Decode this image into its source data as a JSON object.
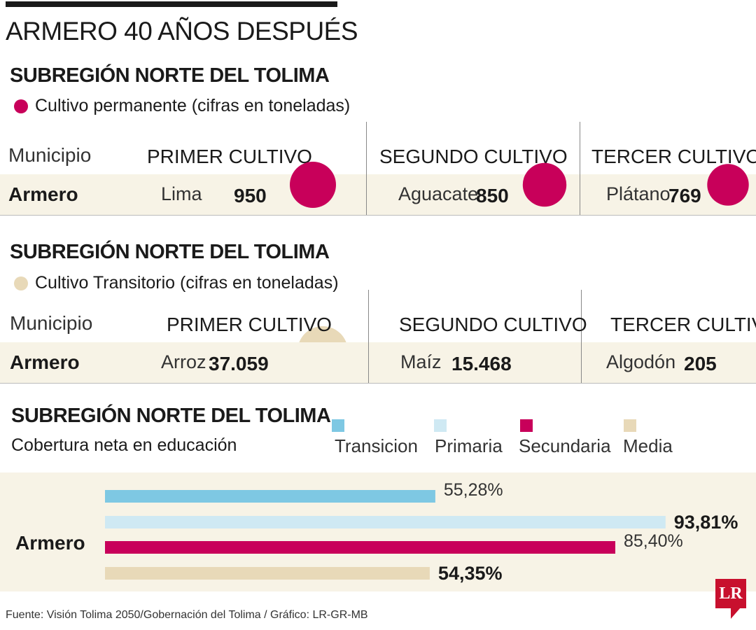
{
  "title": "ARMERO 40 AÑOS DESPUÉS",
  "sections": [
    {
      "subtitle": "SUBREGIÓN NORTE DEL TOLIMA",
      "legend": "Cultivo permanente (cifras en toneladas)",
      "legend_color": "#c8005a",
      "municipio_label": "Municipio",
      "municipio": "Armero",
      "columns": [
        {
          "header": "PRIMER CULTIVO",
          "crop": "Lima",
          "value_label": "950",
          "value": 950
        },
        {
          "header": "SEGUNDO CULTIVO",
          "crop": "Aguacate",
          "value_label": "850",
          "value": 850
        },
        {
          "header": "TERCER CULTIVO",
          "crop": "Plátano",
          "value_label": "769",
          "value": 769
        }
      ]
    },
    {
      "subtitle": "SUBREGIÓN NORTE DEL TOLIMA",
      "legend": "Cultivo Transitorio (cifras en toneladas)",
      "legend_color": "#e8d9b8",
      "municipio_label": "Municipio",
      "municipio": "Armero",
      "columns": [
        {
          "header": "PRIMER CULTIVO",
          "crop": "Arroz",
          "value_label": "37.059",
          "value": 37059
        },
        {
          "header": "SEGUNDO CULTIVO",
          "crop": "Maíz",
          "value_label": "15.468",
          "value": 15468
        },
        {
          "header": "TERCER CULTIVO",
          "crop": "Algodón",
          "value_label": "205",
          "value": 205
        }
      ]
    }
  ],
  "education": {
    "subtitle": "SUBREGIÓN NORTE DEL TOLIMA",
    "caption": "Cobertura neta en educación",
    "municipio": "Armero"
  },
  "chart_data": {
    "type": "bar",
    "orientation": "horizontal",
    "categories": [
      "Armero"
    ],
    "series": [
      {
        "name": "Transicion",
        "values": [
          55.28
        ],
        "label": "55,28%",
        "color": "#7ec8e3",
        "bold": false
      },
      {
        "name": "Primaria",
        "values": [
          93.81
        ],
        "label": "93,81%",
        "color": "#cfe9f3",
        "bold": true
      },
      {
        "name": "Secundaria",
        "values": [
          85.4
        ],
        "label": "85,40%",
        "color": "#c8005a",
        "bold": false
      },
      {
        "name": "Media",
        "values": [
          54.35
        ],
        "label": "54,35%",
        "color": "#e8d9b8",
        "bold": true
      }
    ],
    "xlim": [
      0,
      100
    ],
    "legend_placement": "top"
  },
  "source": "Fuente: Visión Tolima 2050/Gobernación del Tolima / Gráfico: LR-GR-MB",
  "logo_text": "LR"
}
